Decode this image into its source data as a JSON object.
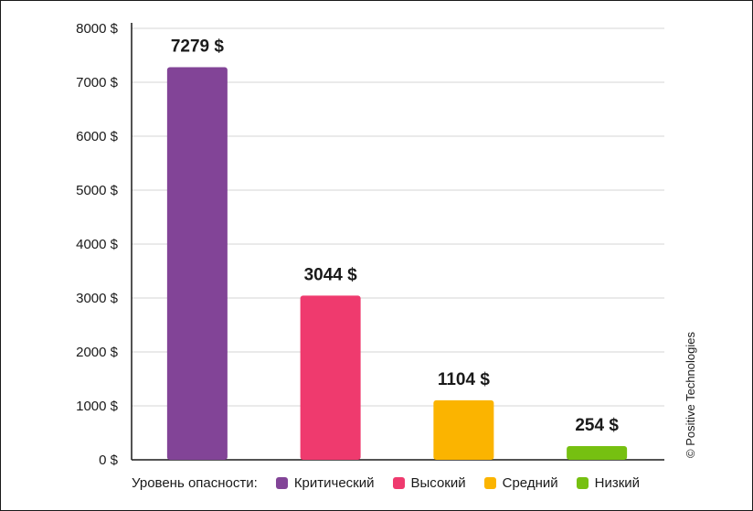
{
  "chart_data": {
    "type": "bar",
    "categories": [
      "Критический",
      "Высокий",
      "Средний",
      "Низкий"
    ],
    "values": [
      7279,
      3044,
      1104,
      254
    ],
    "data_labels": [
      "7279 $",
      "3044 $",
      "1104 $",
      "254 $"
    ],
    "colors": [
      "#824497",
      "#ef3a6e",
      "#fbb400",
      "#76c011"
    ],
    "ylim": [
      0,
      8000
    ],
    "yticks": [
      0,
      1000,
      2000,
      3000,
      4000,
      5000,
      6000,
      7000,
      8000
    ],
    "ytick_labels": [
      "0 $",
      "1000 $",
      "2000 $",
      "3000 $",
      "4000 $",
      "5000 $",
      "6000 $",
      "7000 $",
      "8000 $"
    ],
    "grid": true,
    "legend_position": "bottom",
    "legend_title": "Уровень опасности:"
  },
  "copyright": "© Positive Technologies"
}
